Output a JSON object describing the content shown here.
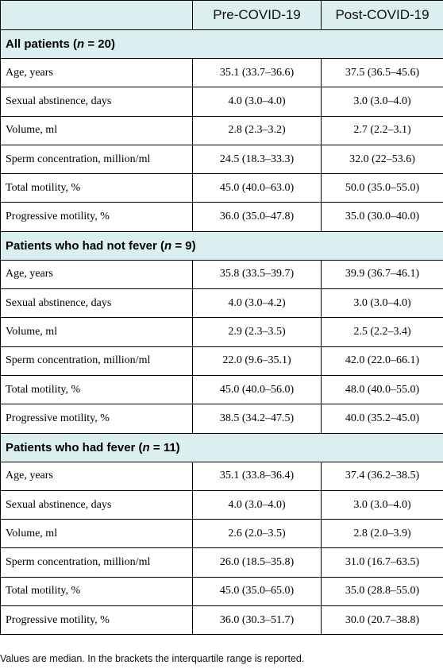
{
  "table": {
    "headers": [
      "",
      "Pre-COVID-19",
      "Post-COVID-19"
    ],
    "sections": [
      {
        "title_prefix": "All patients (",
        "title_n": "n",
        "title_suffix": " = 20)",
        "rows": [
          {
            "label": "Age, years",
            "pre": "35.1 (33.7–36.6)",
            "post": "37.5 (36.5–45.6)"
          },
          {
            "label": "Sexual abstinence, days",
            "pre": "4.0 (3.0–4.0)",
            "post": "3.0 (3.0–4.0)"
          },
          {
            "label": "Volume, ml",
            "pre": "2.8 (2.3–3.2)",
            "post": "2.7 (2.2–3.1)"
          },
          {
            "label": "Sperm concentration, million/ml",
            "pre": "24.5 (18.3–33.3)",
            "post": "32.0 (22–53.6)"
          },
          {
            "label": "Total motility, %",
            "pre": "45.0 (40.0–63.0)",
            "post": "50.0 (35.0–55.0)"
          },
          {
            "label": "Progressive motility, %",
            "pre": "36.0 (35.0–47.8)",
            "post": "35.0 (30.0–40.0)"
          }
        ]
      },
      {
        "title_prefix": "Patients who had not fever (",
        "title_n": "n",
        "title_suffix": " = 9)",
        "rows": [
          {
            "label": "Age, years",
            "pre": "35.8 (33.5–39.7)",
            "post": "39.9 (36.7–46.1)"
          },
          {
            "label": "Sexual abstinence, days",
            "pre": "4.0 (3.0–4.2)",
            "post": "3.0 (3.0–4.0)"
          },
          {
            "label": "Volume, ml",
            "pre": "2.9 (2.3–3.5)",
            "post": "2.5 (2.2–3.4)"
          },
          {
            "label": "Sperm concentration, million/ml",
            "pre": "22.0 (9.6–35.1)",
            "post": "42.0 (22.0–66.1)"
          },
          {
            "label": "Total motility, %",
            "pre": "45.0 (40.0–56.0)",
            "post": "48.0 (40.0–55.0)"
          },
          {
            "label": "Progressive motility, %",
            "pre": "38.5 (34.2–47.5)",
            "post": "40.0 (35.2–45.0)"
          }
        ]
      },
      {
        "title_prefix": "Patients who had fever (",
        "title_n": "n",
        "title_suffix": " = 11)",
        "rows": [
          {
            "label": "Age, years",
            "pre": "35.1 (33.8–36.4)",
            "post": "37.4 (36.2–38.5)"
          },
          {
            "label": "Sexual abstinence, days",
            "pre": "4.0 (3.0–4.0)",
            "post": "3.0 (3.0–4.0)"
          },
          {
            "label": "Volume, ml",
            "pre": "2.6 (2.0–3.5)",
            "post": "2.8 (2.0–3.9)"
          },
          {
            "label": "Sperm concentration, million/ml",
            "pre": "26.0 (18.5–35.8)",
            "post": "31.0 (16.7–63.5)"
          },
          {
            "label": "Total motility, %",
            "pre": "45.0 (35.0–65.0)",
            "post": "35.0 (28.8–55.0)"
          },
          {
            "label": "Progressive motility, %",
            "pre": "36.0 (30.3–51.7)",
            "post": "30.0 (20.7–38.8)"
          }
        ]
      }
    ]
  },
  "footnote": "Values are median. In the brackets the interquartile range is reported."
}
